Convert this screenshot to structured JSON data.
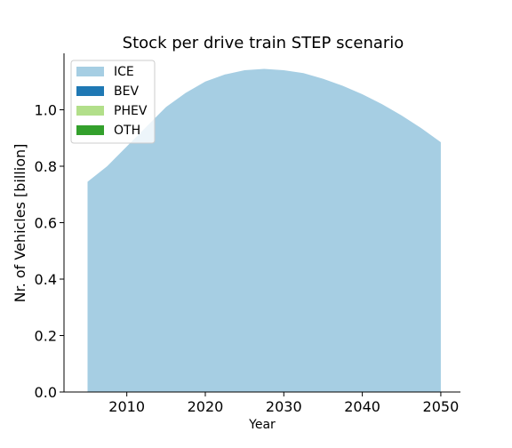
{
  "chart_data": {
    "type": "area",
    "title": "Stock per drive train STEP scenario",
    "xlabel": "Year",
    "ylabel": "Nr. of Vehicles [billion]",
    "xlim": [
      2002,
      2052.5
    ],
    "ylim": [
      0,
      1.2
    ],
    "xticks": [
      2010,
      2020,
      2030,
      2040,
      2050
    ],
    "yticks": [
      0.0,
      0.2,
      0.4,
      0.6,
      0.8,
      1.0
    ],
    "x_tick_labels": [
      "2010",
      "2020",
      "2030",
      "2040",
      "2050"
    ],
    "y_tick_labels": [
      "0.0",
      "0.2",
      "0.4",
      "0.6",
      "0.8",
      "1.0"
    ],
    "stacked": true,
    "legend_position": "top-left",
    "grid": false,
    "x": [
      2005,
      2007.5,
      2010,
      2012.5,
      2015,
      2017.5,
      2020,
      2022.5,
      2025,
      2027.5,
      2030,
      2032.5,
      2035,
      2037.5,
      2040,
      2042.5,
      2045,
      2047.5,
      2050
    ],
    "series": [
      {
        "name": "ICE",
        "color": "#a6cee3",
        "values": [
          0.745,
          0.8,
          0.87,
          0.94,
          1.01,
          1.06,
          1.1,
          1.125,
          1.14,
          1.145,
          1.14,
          1.13,
          1.11,
          1.085,
          1.055,
          1.02,
          0.98,
          0.935,
          0.885
        ]
      },
      {
        "name": "BEV",
        "color": "#1f78b4",
        "values": [
          0,
          0,
          0,
          0,
          0,
          0,
          0,
          0,
          0,
          0,
          0,
          0,
          0,
          0,
          0,
          0,
          0,
          0,
          0
        ]
      },
      {
        "name": "PHEV",
        "color": "#b2df8a",
        "values": [
          0,
          0,
          0,
          0,
          0,
          0,
          0,
          0,
          0,
          0,
          0,
          0,
          0,
          0,
          0,
          0,
          0,
          0,
          0
        ]
      },
      {
        "name": "OTH",
        "color": "#33a02c",
        "values": [
          0,
          0,
          0,
          0,
          0,
          0,
          0,
          0,
          0,
          0,
          0,
          0,
          0,
          0,
          0,
          0,
          0,
          0,
          0
        ]
      }
    ]
  }
}
